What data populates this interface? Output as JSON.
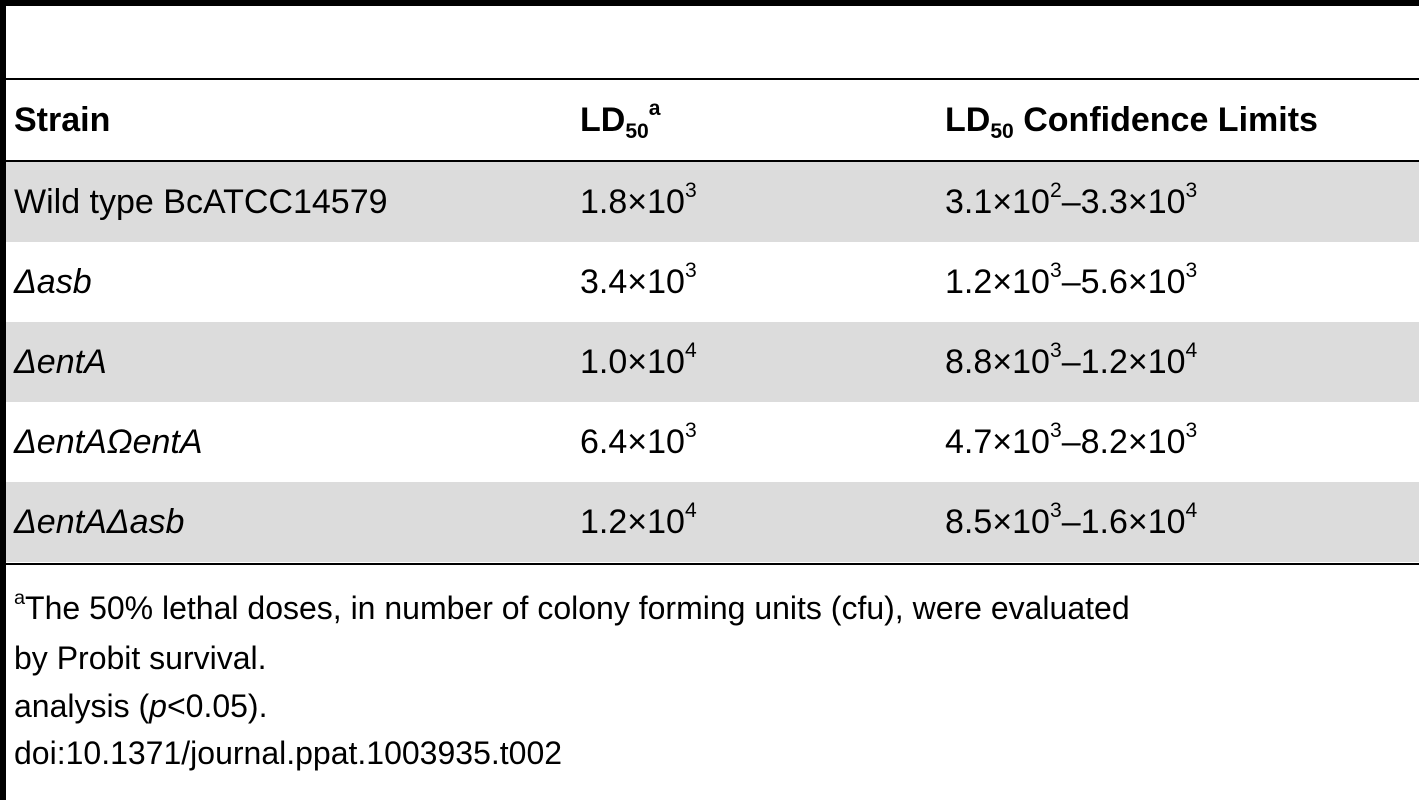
{
  "table": {
    "header": [
      [
        {
          "text": "Strain"
        }
      ],
      [
        {
          "text": "LD"
        },
        {
          "sub": "50"
        },
        {
          "sup": "a"
        }
      ],
      [
        {
          "text": "LD"
        },
        {
          "sub": "50"
        },
        {
          "text": " Confidence Limits"
        }
      ]
    ],
    "rows": [
      [
        [
          {
            "text": "Wild type BcATCC14579"
          }
        ],
        [
          {
            "text": "1.8×10"
          },
          {
            "sup": "3"
          }
        ],
        [
          {
            "text": "3.1×10"
          },
          {
            "sup": "2"
          },
          {
            "text": "–3.3×10"
          },
          {
            "sup": "3"
          }
        ]
      ],
      [
        [
          {
            "italic": "Δasb"
          }
        ],
        [
          {
            "text": "3.4×10"
          },
          {
            "sup": "3"
          }
        ],
        [
          {
            "text": "1.2×10"
          },
          {
            "sup": "3"
          },
          {
            "text": "–5.6×10"
          },
          {
            "sup": "3"
          }
        ]
      ],
      [
        [
          {
            "italic": "ΔentA"
          }
        ],
        [
          {
            "text": "1.0×10"
          },
          {
            "sup": "4"
          }
        ],
        [
          {
            "text": "8.8×10"
          },
          {
            "sup": "3"
          },
          {
            "text": "–1.2×10"
          },
          {
            "sup": "4"
          }
        ]
      ],
      [
        [
          {
            "italic": "ΔentAΩentA"
          }
        ],
        [
          {
            "text": "6.4×10"
          },
          {
            "sup": "3"
          }
        ],
        [
          {
            "text": "4.7×10"
          },
          {
            "sup": "3"
          },
          {
            "text": "–8.2×10"
          },
          {
            "sup": "3"
          }
        ]
      ],
      [
        [
          {
            "italic": "ΔentAΔasb"
          }
        ],
        [
          {
            "text": "1.2×10"
          },
          {
            "sup": "4"
          }
        ],
        [
          {
            "text": "8.5×10"
          },
          {
            "sup": "3"
          },
          {
            "text": "–1.6×10"
          },
          {
            "sup": "4"
          }
        ]
      ]
    ]
  },
  "footnotes": [
    [
      {
        "sup": "a"
      },
      {
        "text": "The 50% lethal doses, in number of colony forming units (cfu), were evaluated"
      }
    ],
    [
      {
        "text": "by Probit survival."
      }
    ],
    [
      {
        "text": "analysis ("
      },
      {
        "italic": "p"
      },
      {
        "text": "<0.05)."
      }
    ],
    [
      {
        "text": "doi:10.1371/journal.ppat.1003935.t002"
      }
    ]
  ]
}
